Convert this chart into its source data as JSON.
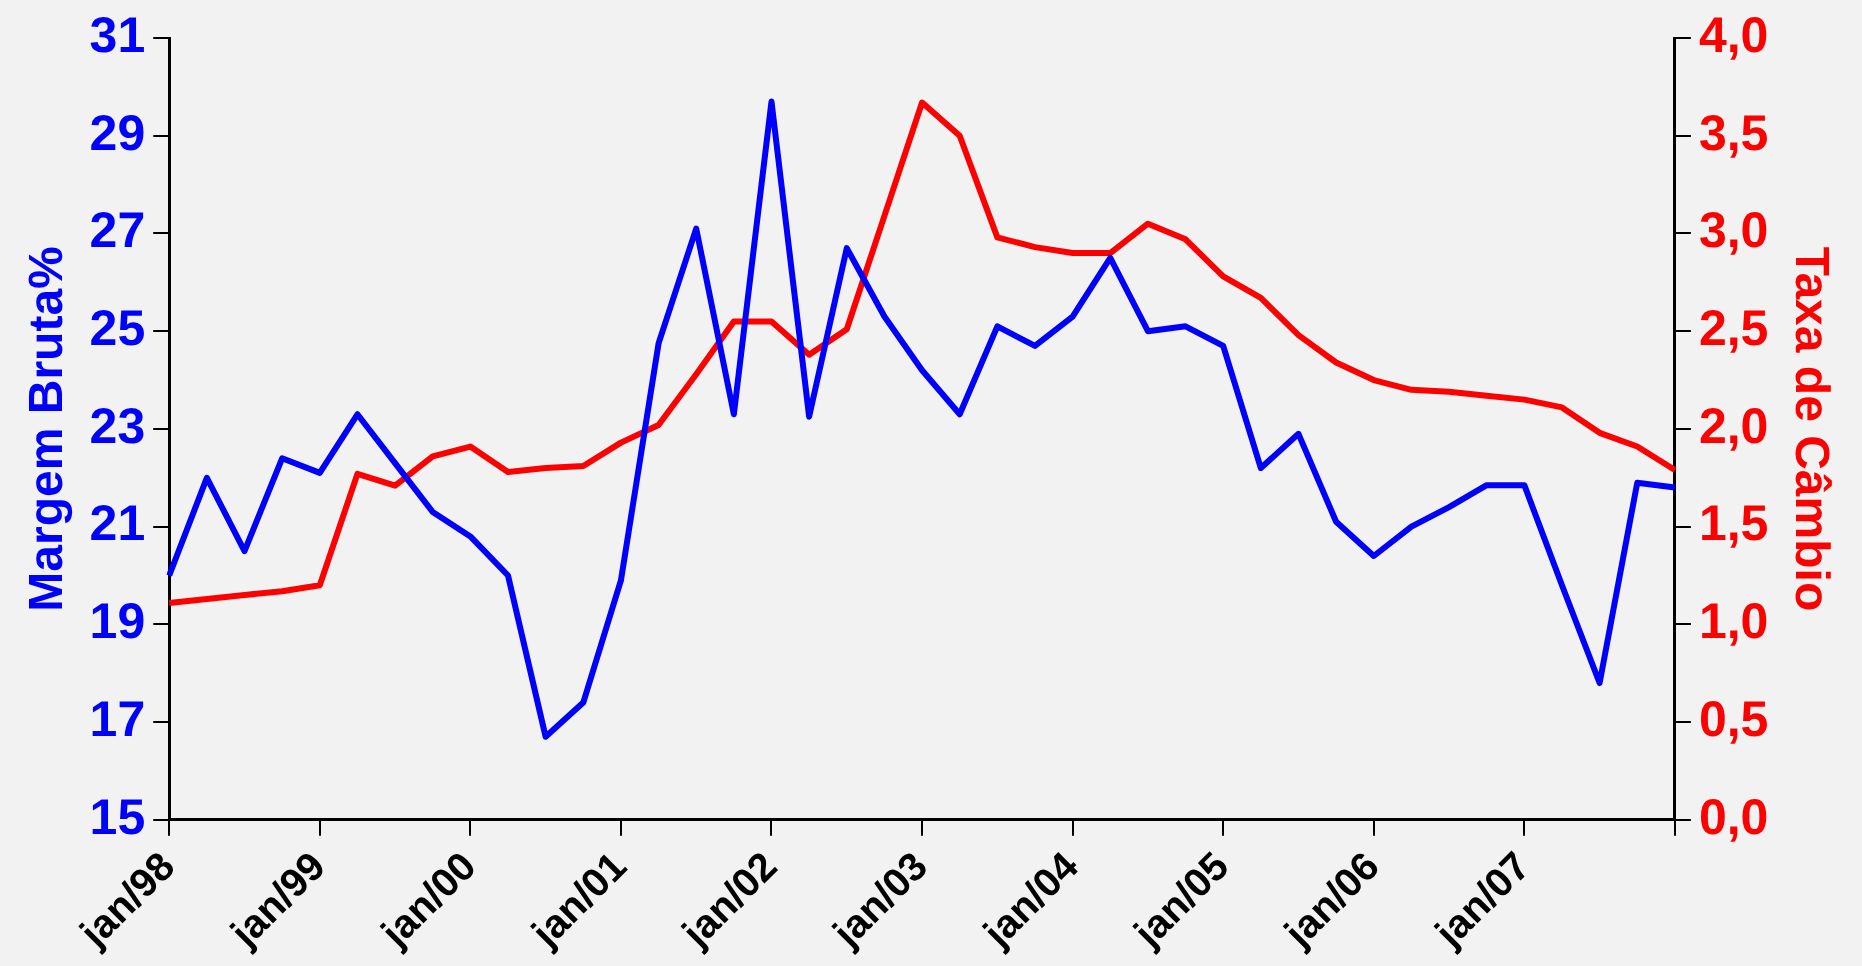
{
  "chart_data": {
    "type": "line",
    "ylabel": "Margem Bruta%",
    "y2label": "Taxa de Câmbio",
    "categories": [
      "jan/98",
      null,
      null,
      null,
      "jan/99",
      null,
      null,
      null,
      "jan/00",
      null,
      null,
      null,
      "jan/01",
      null,
      null,
      null,
      "jan/02",
      null,
      null,
      null,
      "jan/03",
      null,
      null,
      null,
      "jan/04",
      null,
      null,
      null,
      "jan/05",
      null,
      null,
      null,
      "jan/06",
      null,
      null,
      null,
      "jan/07",
      null,
      null,
      null,
      null
    ],
    "series": [
      {
        "color": "#0000ff",
        "values": [
          20.0,
          22.0,
          20.5,
          22.4,
          22.1,
          23.3,
          22.3,
          21.3,
          20.8,
          20.0,
          16.7,
          17.4,
          19.9,
          24.75,
          27.1,
          23.3,
          29.7,
          23.25,
          26.7,
          25.3,
          24.2,
          23.3,
          25.1,
          24.7,
          25.3,
          26.5,
          25.0,
          25.1,
          24.7,
          22.2,
          22.9,
          21.1,
          20.4,
          21.0,
          21.4,
          21.85,
          21.85,
          19.8,
          17.8,
          21.9,
          21.8
        ]
      },
      {
        "color": "#ff0000",
        "axis": "y2",
        "values": [
          1.11,
          1.13,
          1.15,
          1.17,
          1.2,
          1.77,
          1.71,
          1.86,
          1.91,
          1.78,
          1.8,
          1.81,
          1.93,
          2.02,
          2.28,
          2.55,
          2.55,
          2.38,
          2.51,
          3.09,
          3.67,
          3.5,
          2.98,
          2.93,
          2.9,
          2.9,
          3.05,
          2.97,
          2.78,
          2.67,
          2.48,
          2.34,
          2.25,
          2.2,
          2.19,
          2.17,
          2.15,
          2.11,
          1.98,
          1.91,
          1.79
        ]
      }
    ],
    "ylim": [
      15,
      31
    ],
    "yticks": [
      15,
      17,
      19,
      21,
      23,
      25,
      27,
      29,
      31
    ],
    "y2lim": [
      0,
      4
    ],
    "y2ticks": [
      {
        "value": 0,
        "label": "0,0"
      },
      {
        "value": 0.5,
        "label": "0,5"
      },
      {
        "value": 1,
        "label": "1,0"
      },
      {
        "value": 1.5,
        "label": "1,5"
      },
      {
        "value": 2,
        "label": "2,0"
      },
      {
        "value": 2.5,
        "label": "2,5"
      },
      {
        "value": 3,
        "label": "3,0"
      },
      {
        "value": 3.5,
        "label": "3,5"
      },
      {
        "value": 4,
        "label": "4,0"
      }
    ],
    "grid": false,
    "legend": false,
    "marker": "none",
    "line_style": "solid"
  }
}
